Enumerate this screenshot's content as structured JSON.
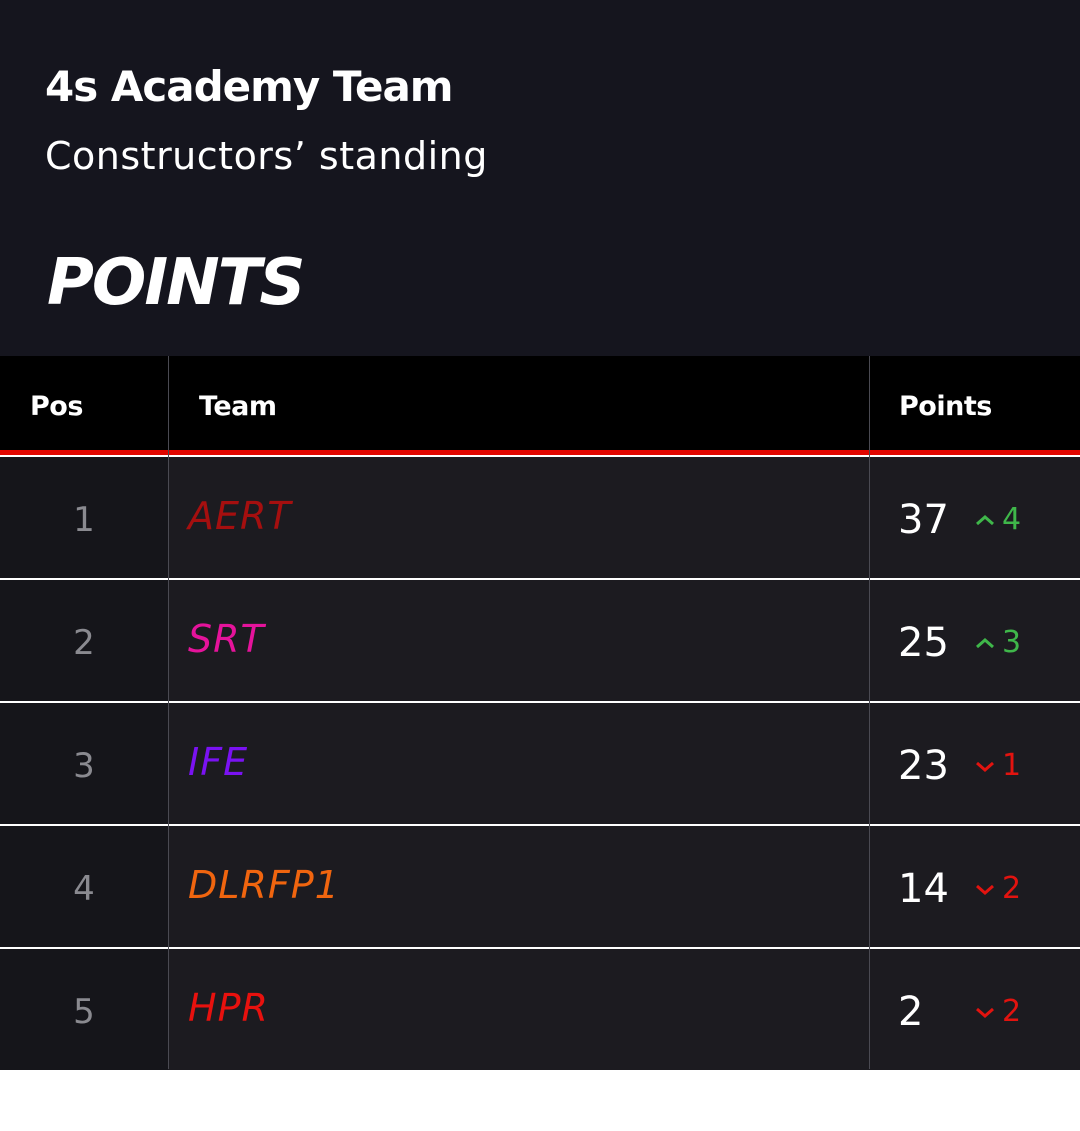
{
  "header": {
    "title": "4s Academy Team",
    "subtitle": "Constructors’ standing",
    "heading": "POINTS"
  },
  "table": {
    "columns": {
      "pos": "Pos",
      "team": "Team",
      "points": "Points"
    },
    "rows": [
      {
        "pos": "1",
        "team": "AERT",
        "team_color": "#a50f0f",
        "points": "37",
        "change": "4",
        "direction": "up"
      },
      {
        "pos": "2",
        "team": "SRT",
        "team_color": "#e5139b",
        "points": "25",
        "change": "3",
        "direction": "up"
      },
      {
        "pos": "3",
        "team": "IFE",
        "team_color": "#7a12f2",
        "points": "23",
        "change": "1",
        "direction": "down"
      },
      {
        "pos": "4",
        "team": "DLRFP1",
        "team_color": "#f0650f",
        "points": "14",
        "change": "2",
        "direction": "down"
      },
      {
        "pos": "5",
        "team": "HPR",
        "team_color": "#e8110e",
        "points": "2",
        "change": "2",
        "direction": "down"
      }
    ]
  },
  "colors": {
    "up": "#3fb74a",
    "down": "#e2130f",
    "accent_line": "#e10600",
    "header_bg": "#15151e"
  },
  "icons": {
    "up": "chevron-up-icon",
    "down": "chevron-down-icon"
  }
}
